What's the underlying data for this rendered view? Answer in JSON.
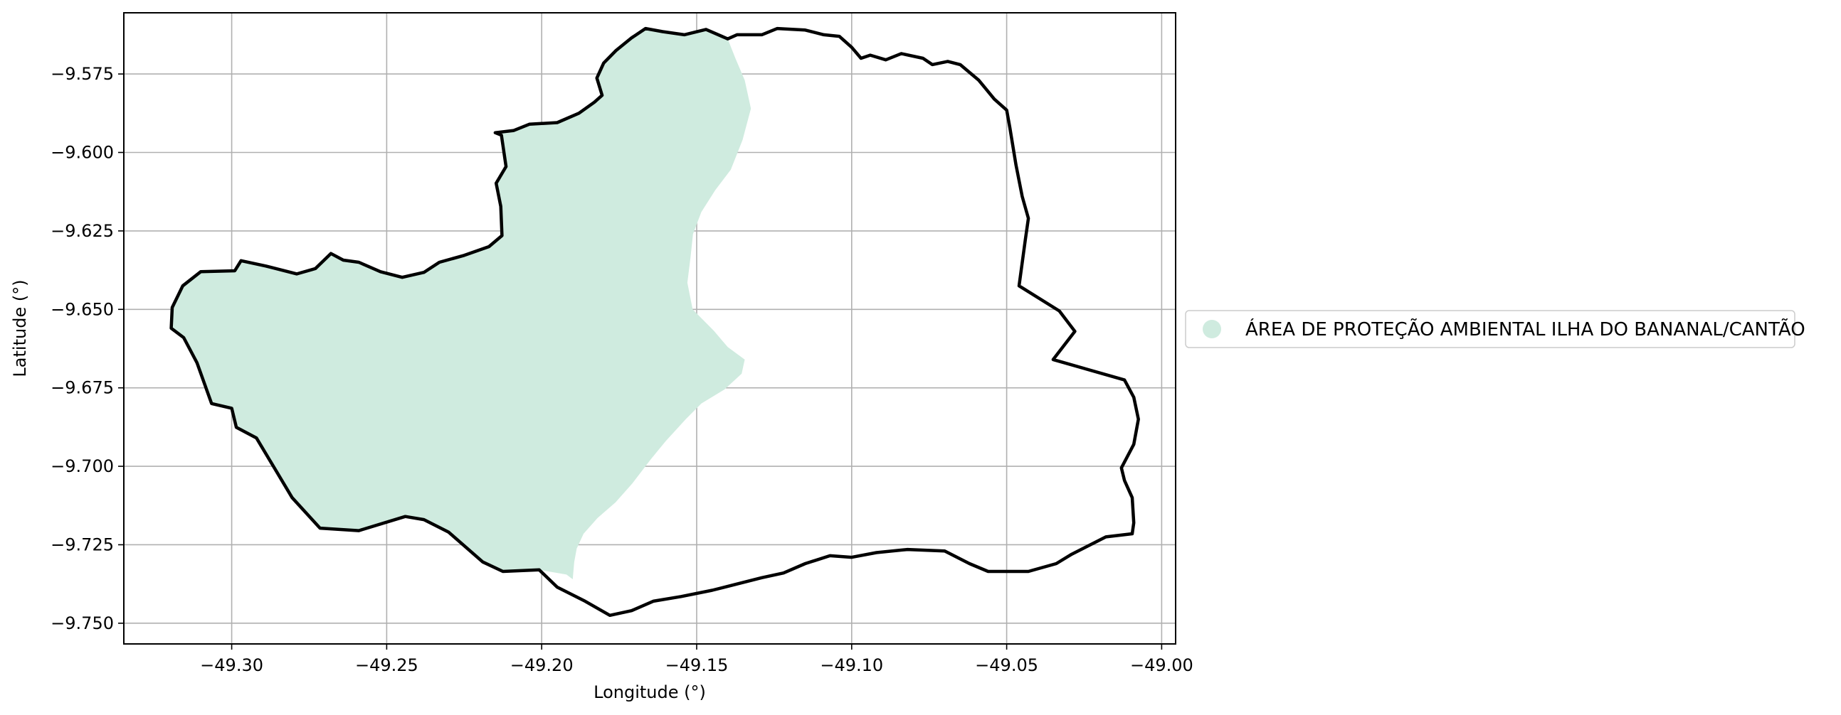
{
  "chart_data": {
    "type": "map",
    "title": "",
    "xlabel": "Longitude (°)",
    "ylabel": "Latitude (°)",
    "xlim": [
      -49.3348,
      -48.9955
    ],
    "ylim": [
      -9.7566,
      -9.5555
    ],
    "xticks": [
      -49.3,
      -49.25,
      -49.2,
      -49.15,
      -49.1,
      -49.05,
      -49.0
    ],
    "yticks": [
      -9.575,
      -9.6,
      -9.625,
      -9.65,
      -9.675,
      -9.7,
      -9.725,
      -9.75
    ],
    "xtick_labels": [
      "−49.30",
      "−49.25",
      "−49.20",
      "−49.15",
      "−49.10",
      "−49.05",
      "−49.00"
    ],
    "ytick_labels": [
      "−9.575",
      "−9.600",
      "−9.625",
      "−9.650",
      "−9.675",
      "−9.700",
      "−9.725",
      "−9.750"
    ],
    "grid": true,
    "legend": {
      "placement": "center-right-outside",
      "entries": [
        {
          "label": "ÁREA DE PROTEÇÃO AMBIENTAL ILHA DO BANANAL/CANTÃO",
          "color": "#cfebdf",
          "marker": "circle"
        }
      ]
    },
    "layers": [
      {
        "name": "ÁREA DE PROTEÇÃO AMBIENTAL ILHA DO BANANAL/CANTÃO",
        "kind": "filled-polygon",
        "color": "#cfebdf",
        "coords": [
          [
            -49.3192,
            -9.6494
          ],
          [
            -49.3158,
            -9.6425
          ],
          [
            -49.31,
            -9.638
          ],
          [
            -49.299,
            -9.6377
          ],
          [
            -49.297,
            -9.6345
          ],
          [
            -49.289,
            -9.6362
          ],
          [
            -49.279,
            -9.6387
          ],
          [
            -49.273,
            -9.637
          ],
          [
            -49.268,
            -9.6322
          ],
          [
            -49.264,
            -9.6343
          ],
          [
            -49.259,
            -9.635
          ],
          [
            -49.252,
            -9.638
          ],
          [
            -49.245,
            -9.6398
          ],
          [
            -49.238,
            -9.6382
          ],
          [
            -49.233,
            -9.635
          ],
          [
            -49.225,
            -9.6328
          ],
          [
            -49.217,
            -9.63
          ],
          [
            -49.2128,
            -9.6265
          ],
          [
            -49.2132,
            -9.6172
          ],
          [
            -49.2147,
            -9.6098
          ],
          [
            -49.2115,
            -9.6045
          ],
          [
            -49.213,
            -9.5945
          ],
          [
            -49.215,
            -9.5937
          ],
          [
            -49.209,
            -9.593
          ],
          [
            -49.204,
            -9.591
          ],
          [
            -49.195,
            -9.5905
          ],
          [
            -49.188,
            -9.5875
          ],
          [
            -49.183,
            -9.584
          ],
          [
            -49.1805,
            -9.5818
          ],
          [
            -49.1822,
            -9.5763
          ],
          [
            -49.18,
            -9.5715
          ],
          [
            -49.176,
            -9.5675
          ],
          [
            -49.171,
            -9.5635
          ],
          [
            -49.1665,
            -9.5605
          ],
          [
            -49.161,
            -9.5615
          ],
          [
            -49.154,
            -9.5625
          ],
          [
            -49.147,
            -9.5608
          ],
          [
            -49.14,
            -9.5638
          ],
          [
            -49.1375,
            -9.57
          ],
          [
            -49.1345,
            -9.577
          ],
          [
            -49.1325,
            -9.586
          ],
          [
            -49.1352,
            -9.596
          ],
          [
            -49.139,
            -9.6055
          ],
          [
            -49.144,
            -9.612
          ],
          [
            -49.1485,
            -9.619
          ],
          [
            -49.1512,
            -9.626
          ],
          [
            -49.152,
            -9.6335
          ],
          [
            -49.153,
            -9.6415
          ],
          [
            -49.1513,
            -9.65
          ],
          [
            -49.1445,
            -9.6568
          ],
          [
            -49.14,
            -9.662
          ],
          [
            -49.1345,
            -9.666
          ],
          [
            -49.1355,
            -9.6705
          ],
          [
            -49.141,
            -9.6755
          ],
          [
            -49.1485,
            -9.68
          ],
          [
            -49.1535,
            -9.685
          ],
          [
            -49.16,
            -9.692
          ],
          [
            -49.165,
            -9.698
          ],
          [
            -49.1708,
            -9.7055
          ],
          [
            -49.1762,
            -9.7115
          ],
          [
            -49.182,
            -9.7165
          ],
          [
            -49.1865,
            -9.7215
          ],
          [
            -49.1887,
            -9.7262
          ],
          [
            -49.1895,
            -9.7305
          ],
          [
            -49.19,
            -9.736
          ],
          [
            -49.192,
            -9.7345
          ],
          [
            -49.2008,
            -9.733
          ],
          [
            -49.2125,
            -9.7335
          ],
          [
            -49.219,
            -9.7305
          ],
          [
            -49.23,
            -9.721
          ],
          [
            -49.238,
            -9.717
          ],
          [
            -49.244,
            -9.716
          ],
          [
            -49.259,
            -9.7205
          ],
          [
            -49.2715,
            -9.7197
          ],
          [
            -49.2805,
            -9.71
          ],
          [
            -49.292,
            -9.691
          ],
          [
            -49.2985,
            -9.6876
          ],
          [
            -49.3,
            -9.6815
          ],
          [
            -49.3065,
            -9.68
          ],
          [
            -49.3112,
            -9.667
          ],
          [
            -49.3155,
            -9.659
          ],
          [
            -49.3195,
            -9.656
          ]
        ]
      },
      {
        "name": "boundary",
        "kind": "outline",
        "color": "#000000",
        "coords": [
          [
            -49.3192,
            -9.6494
          ],
          [
            -49.3158,
            -9.6425
          ],
          [
            -49.31,
            -9.638
          ],
          [
            -49.299,
            -9.6377
          ],
          [
            -49.297,
            -9.6345
          ],
          [
            -49.289,
            -9.6362
          ],
          [
            -49.279,
            -9.6387
          ],
          [
            -49.273,
            -9.637
          ],
          [
            -49.268,
            -9.6322
          ],
          [
            -49.264,
            -9.6343
          ],
          [
            -49.259,
            -9.635
          ],
          [
            -49.252,
            -9.638
          ],
          [
            -49.245,
            -9.6398
          ],
          [
            -49.238,
            -9.6382
          ],
          [
            -49.233,
            -9.635
          ],
          [
            -49.225,
            -9.6328
          ],
          [
            -49.217,
            -9.63
          ],
          [
            -49.2128,
            -9.6265
          ],
          [
            -49.2132,
            -9.6172
          ],
          [
            -49.2147,
            -9.6098
          ],
          [
            -49.2115,
            -9.6045
          ],
          [
            -49.213,
            -9.5945
          ],
          [
            -49.215,
            -9.5937
          ],
          [
            -49.209,
            -9.593
          ],
          [
            -49.204,
            -9.591
          ],
          [
            -49.195,
            -9.5905
          ],
          [
            -49.188,
            -9.5875
          ],
          [
            -49.183,
            -9.584
          ],
          [
            -49.1805,
            -9.5818
          ],
          [
            -49.1822,
            -9.5763
          ],
          [
            -49.18,
            -9.5715
          ],
          [
            -49.176,
            -9.5675
          ],
          [
            -49.171,
            -9.5635
          ],
          [
            -49.1665,
            -9.5605
          ],
          [
            -49.161,
            -9.5615
          ],
          [
            -49.154,
            -9.5625
          ],
          [
            -49.147,
            -9.5608
          ],
          [
            -49.14,
            -9.5638
          ],
          [
            -49.137,
            -9.5625
          ],
          [
            -49.129,
            -9.5625
          ],
          [
            -49.124,
            -9.5605
          ],
          [
            -49.115,
            -9.561
          ],
          [
            -49.109,
            -9.5625
          ],
          [
            -49.104,
            -9.563
          ],
          [
            -49.1,
            -9.5665
          ],
          [
            -49.097,
            -9.57
          ],
          [
            -49.094,
            -9.569
          ],
          [
            -49.089,
            -9.5705
          ],
          [
            -49.084,
            -9.5685
          ],
          [
            -49.077,
            -9.57
          ],
          [
            -49.074,
            -9.572
          ],
          [
            -49.069,
            -9.571
          ],
          [
            -49.065,
            -9.572
          ],
          [
            -49.059,
            -9.577
          ],
          [
            -49.054,
            -9.583
          ],
          [
            -49.05,
            -9.5865
          ],
          [
            -49.049,
            -9.592
          ],
          [
            -49.047,
            -9.604
          ],
          [
            -49.045,
            -9.614
          ],
          [
            -49.043,
            -9.621
          ],
          [
            -49.044,
            -9.628
          ],
          [
            -49.046,
            -9.6425
          ],
          [
            -49.033,
            -9.6505
          ],
          [
            -49.028,
            -9.657
          ],
          [
            -49.035,
            -9.666
          ],
          [
            -49.012,
            -9.6725
          ],
          [
            -49.009,
            -9.678
          ],
          [
            -49.0075,
            -9.685
          ],
          [
            -49.009,
            -9.693
          ],
          [
            -49.013,
            -9.7005
          ],
          [
            -49.012,
            -9.7045
          ],
          [
            -49.0095,
            -9.71
          ],
          [
            -49.009,
            -9.718
          ],
          [
            -49.0095,
            -9.7215
          ],
          [
            -49.018,
            -9.7225
          ],
          [
            -49.029,
            -9.728
          ],
          [
            -49.034,
            -9.731
          ],
          [
            -49.043,
            -9.7335
          ],
          [
            -49.056,
            -9.7335
          ],
          [
            -49.062,
            -9.731
          ],
          [
            -49.07,
            -9.727
          ],
          [
            -49.082,
            -9.7265
          ],
          [
            -49.092,
            -9.7275
          ],
          [
            -49.1,
            -9.729
          ],
          [
            -49.107,
            -9.7285
          ],
          [
            -49.115,
            -9.731
          ],
          [
            -49.122,
            -9.734
          ],
          [
            -49.129,
            -9.7355
          ],
          [
            -49.137,
            -9.7375
          ],
          [
            -49.145,
            -9.7395
          ],
          [
            -49.155,
            -9.7415
          ],
          [
            -49.164,
            -9.743
          ],
          [
            -49.171,
            -9.746
          ],
          [
            -49.178,
            -9.7475
          ],
          [
            -49.186,
            -9.743
          ],
          [
            -49.195,
            -9.7385
          ],
          [
            -49.2008,
            -9.733
          ],
          [
            -49.2125,
            -9.7335
          ],
          [
            -49.219,
            -9.7305
          ],
          [
            -49.23,
            -9.721
          ],
          [
            -49.238,
            -9.717
          ],
          [
            -49.244,
            -9.716
          ],
          [
            -49.259,
            -9.7205
          ],
          [
            -49.2715,
            -9.7197
          ],
          [
            -49.2805,
            -9.71
          ],
          [
            -49.292,
            -9.691
          ],
          [
            -49.2985,
            -9.6876
          ],
          [
            -49.3,
            -9.6815
          ],
          [
            -49.3065,
            -9.68
          ],
          [
            -49.3112,
            -9.667
          ],
          [
            -49.3155,
            -9.659
          ],
          [
            -49.3195,
            -9.656
          ]
        ]
      }
    ]
  }
}
